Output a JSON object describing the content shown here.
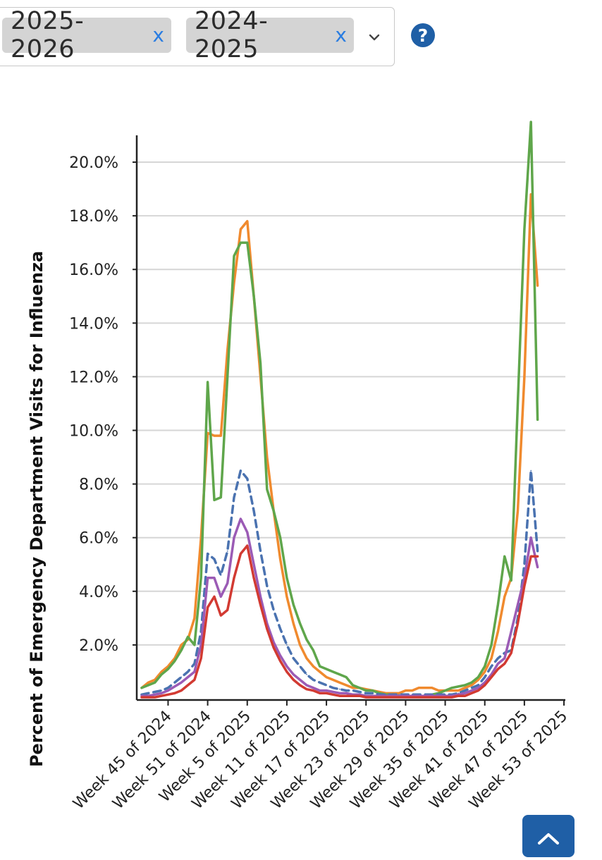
{
  "filters": {
    "chips": [
      {
        "label": "2025-2026",
        "remove": "x"
      },
      {
        "label": "2024-2025",
        "remove": "x"
      }
    ],
    "dropdown_icon": "chevron-down-icon",
    "help_icon": "question-circle-icon"
  },
  "colors": {
    "chip_bg": "#d4d4d4",
    "remove_x": "#2a7de1",
    "help": "#1f5fa6",
    "series_orange": "#f08a2e",
    "series_green": "#5fa64b",
    "series_blue_dashed": "#4a72b0",
    "series_purple": "#9b5bb5",
    "series_red": "#d23a32",
    "gridline": "#d6d6d6"
  },
  "chart_data": {
    "type": "line",
    "title": "",
    "xlabel": "",
    "ylabel": "Percent of Emergency Department Visits for Influenza",
    "ylim": [
      0,
      21
    ],
    "y_ticks": [
      "2.0%",
      "4.0%",
      "6.0%",
      "8.0%",
      "10.0%",
      "12.0%",
      "14.0%",
      "16.0%",
      "18.0%",
      "20.0%"
    ],
    "x_tick_labels": [
      "Week 45 of 2024",
      "Week 51 of 2024",
      "Week 5 of 2025",
      "Week 11 of 2025",
      "Week 17 of 2025",
      "Week 23 of 2025",
      "Week 29 of 2025",
      "Week 35 of 2025",
      "Week 41 of 2025",
      "Week 47 of 2025",
      "Week 53 of 2025"
    ],
    "x_tick_index": [
      4,
      10,
      16,
      22,
      28,
      34,
      40,
      46,
      52,
      58,
      64
    ],
    "grid": true,
    "legend": "none",
    "series": [
      {
        "color": "#f08a2e",
        "style": "solid",
        "values": [
          0.4,
          0.6,
          0.7,
          1.0,
          1.2,
          1.5,
          2.0,
          2.2,
          3.0,
          6.0,
          9.9,
          9.8,
          9.8,
          13.0,
          15.5,
          17.5,
          17.8,
          15.0,
          12.0,
          9.0,
          7.0,
          5.2,
          3.8,
          2.8,
          2.0,
          1.5,
          1.2,
          1.0,
          0.8,
          0.7,
          0.6,
          0.5,
          0.4,
          0.4,
          0.35,
          0.3,
          0.25,
          0.2,
          0.2,
          0.2,
          0.3,
          0.3,
          0.4,
          0.4,
          0.4,
          0.3,
          0.3,
          0.3,
          0.3,
          0.4,
          0.5,
          0.7,
          1.0,
          1.5,
          2.5,
          3.8,
          4.5,
          7.0,
          12.0,
          18.8,
          15.4
        ]
      },
      {
        "color": "#5fa64b",
        "style": "solid",
        "values": [
          0.4,
          0.5,
          0.6,
          0.9,
          1.1,
          1.4,
          1.8,
          2.3,
          2.0,
          4.5,
          11.8,
          7.4,
          7.5,
          12.0,
          16.5,
          17.0,
          17.0,
          15.0,
          12.5,
          7.8,
          7.0,
          6.0,
          4.5,
          3.5,
          2.8,
          2.2,
          1.8,
          1.2,
          1.1,
          1.0,
          0.9,
          0.8,
          0.5,
          0.4,
          0.3,
          0.3,
          0.2,
          0.15,
          0.15,
          0.1,
          0.1,
          0.1,
          0.1,
          0.1,
          0.15,
          0.2,
          0.3,
          0.4,
          0.45,
          0.5,
          0.6,
          0.8,
          1.2,
          2.0,
          3.5,
          5.3,
          4.4,
          11.0,
          17.5,
          21.5,
          10.4
        ]
      },
      {
        "color": "#4a72b0",
        "style": "dashed",
        "values": [
          0.15,
          0.2,
          0.25,
          0.3,
          0.4,
          0.6,
          0.8,
          1.0,
          1.3,
          2.5,
          5.4,
          5.2,
          4.6,
          5.5,
          7.5,
          8.5,
          8.2,
          7.0,
          5.5,
          4.2,
          3.3,
          2.6,
          2.0,
          1.5,
          1.2,
          0.9,
          0.7,
          0.6,
          0.5,
          0.4,
          0.35,
          0.3,
          0.3,
          0.25,
          0.2,
          0.2,
          0.15,
          0.15,
          0.15,
          0.15,
          0.15,
          0.15,
          0.15,
          0.15,
          0.15,
          0.15,
          0.15,
          0.15,
          0.2,
          0.3,
          0.4,
          0.5,
          0.8,
          1.2,
          1.5,
          1.7,
          1.8,
          3.0,
          5.0,
          8.5,
          5.5
        ]
      },
      {
        "color": "#9b5bb5",
        "style": "solid",
        "values": [
          0.1,
          0.1,
          0.15,
          0.2,
          0.3,
          0.45,
          0.6,
          0.8,
          1.0,
          2.0,
          4.5,
          4.5,
          3.8,
          4.3,
          6.0,
          6.7,
          6.2,
          5.0,
          3.8,
          2.8,
          2.1,
          1.6,
          1.2,
          0.9,
          0.7,
          0.5,
          0.4,
          0.3,
          0.3,
          0.25,
          0.2,
          0.2,
          0.15,
          0.15,
          0.1,
          0.1,
          0.1,
          0.1,
          0.1,
          0.1,
          0.1,
          0.1,
          0.1,
          0.1,
          0.1,
          0.1,
          0.1,
          0.1,
          0.15,
          0.2,
          0.3,
          0.4,
          0.6,
          0.9,
          1.3,
          1.5,
          2.5,
          3.5,
          4.5,
          6.0,
          4.9
        ]
      },
      {
        "color": "#d23a32",
        "style": "solid",
        "values": [
          0.05,
          0.05,
          0.05,
          0.1,
          0.15,
          0.2,
          0.3,
          0.5,
          0.7,
          1.5,
          3.4,
          3.8,
          3.1,
          3.3,
          4.5,
          5.4,
          5.7,
          4.5,
          3.5,
          2.6,
          1.9,
          1.4,
          1.0,
          0.7,
          0.5,
          0.35,
          0.3,
          0.2,
          0.2,
          0.15,
          0.1,
          0.1,
          0.1,
          0.1,
          0.05,
          0.05,
          0.05,
          0.05,
          0.05,
          0.05,
          0.05,
          0.05,
          0.05,
          0.05,
          0.05,
          0.05,
          0.05,
          0.05,
          0.1,
          0.1,
          0.2,
          0.3,
          0.5,
          0.8,
          1.1,
          1.3,
          1.7,
          2.8,
          4.2,
          5.3,
          5.3
        ]
      }
    ]
  },
  "scroll_top_icon": "chevron-up-icon"
}
